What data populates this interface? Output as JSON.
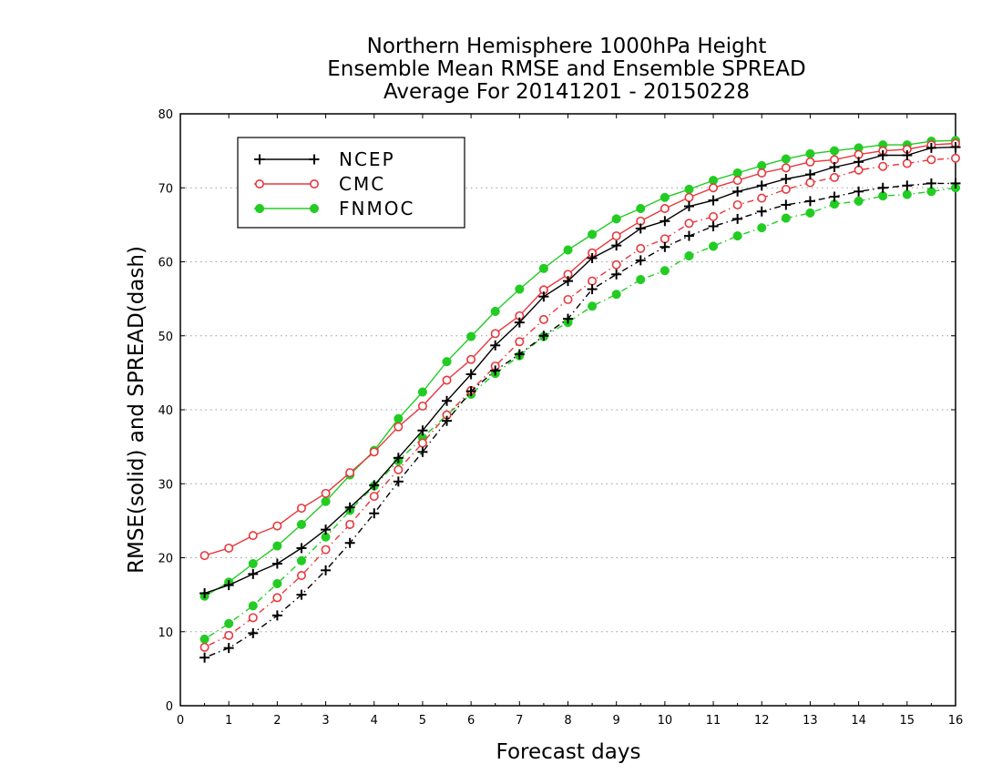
{
  "chart_data": {
    "type": "line",
    "title": [
      "Northern Hemisphere 1000hPa Height",
      "Ensemble Mean RMSE and Ensemble SPREAD",
      "Average For 20141201 - 20150228"
    ],
    "xlabel": "Forecast days",
    "ylabel": "RMSE(solid) and SPREAD(dash)",
    "xlim": [
      0,
      16
    ],
    "ylim": [
      0,
      80
    ],
    "xticks": [
      "0",
      "1",
      "2",
      "3",
      "4",
      "5",
      "6",
      "7",
      "8",
      "9",
      "10",
      "11",
      "12",
      "13",
      "14",
      "15",
      "16"
    ],
    "yticks": [
      "0",
      "10",
      "20",
      "30",
      "40",
      "50",
      "60",
      "70",
      "80"
    ],
    "grid": "horizontal dotted",
    "legend_position": "top-left",
    "x": [
      0.5,
      1,
      1.5,
      2,
      2.5,
      3,
      3.5,
      4,
      4.5,
      5,
      5.5,
      6,
      6.5,
      7,
      7.5,
      8,
      8.5,
      9,
      9.5,
      10,
      10.5,
      11,
      11.5,
      12,
      12.5,
      13,
      13.5,
      14,
      14.5,
      15,
      15.5,
      16
    ],
    "series": [
      {
        "name": "NCEP",
        "color": "#000000",
        "marker": "plus",
        "rmse": [
          15.2,
          16.3,
          17.8,
          19.2,
          21.3,
          23.8,
          26.8,
          29.8,
          33.5,
          37.2,
          41.2,
          44.8,
          48.7,
          51.8,
          55.3,
          57.4,
          60.5,
          62.2,
          64.5,
          65.5,
          67.5,
          68.3,
          69.5,
          70.3,
          71.2,
          71.8,
          72.8,
          73.5,
          74.4,
          74.4,
          75.4,
          75.5
        ],
        "spread": [
          6.5,
          7.8,
          9.8,
          12.2,
          15.0,
          18.3,
          22.0,
          26.0,
          30.3,
          34.3,
          38.5,
          42.5,
          45.3,
          47.5,
          50.0,
          52.3,
          56.3,
          58.3,
          60.2,
          62.0,
          63.5,
          64.8,
          65.8,
          66.8,
          67.7,
          68.2,
          68.8,
          69.5,
          70.0,
          70.3,
          70.6,
          70.6
        ]
      },
      {
        "name": "CMC",
        "color": "#e8383d",
        "marker": "circle-open",
        "rmse": [
          20.3,
          21.3,
          23.0,
          24.3,
          26.7,
          28.7,
          31.5,
          34.3,
          37.7,
          40.5,
          44.0,
          46.8,
          50.3,
          52.7,
          56.2,
          58.3,
          61.2,
          63.5,
          65.5,
          67.2,
          68.7,
          70.0,
          71.0,
          72.0,
          72.7,
          73.5,
          73.8,
          74.5,
          75.0,
          75.2,
          75.8,
          76.0
        ],
        "spread": [
          7.9,
          9.5,
          11.9,
          14.6,
          17.6,
          21.1,
          24.5,
          28.3,
          31.9,
          35.5,
          39.3,
          42.6,
          45.9,
          49.2,
          52.2,
          54.9,
          57.4,
          59.6,
          61.8,
          63.1,
          65.2,
          66.1,
          67.7,
          68.6,
          69.8,
          70.7,
          71.4,
          72.4,
          72.9,
          73.3,
          73.8,
          74.0
        ]
      },
      {
        "name": "FNMOC",
        "color": "#22cc22",
        "marker": "circle-filled",
        "rmse": [
          14.8,
          16.7,
          19.2,
          21.6,
          24.5,
          27.6,
          31.2,
          34.5,
          38.8,
          42.4,
          46.5,
          49.9,
          53.3,
          56.3,
          59.1,
          61.6,
          63.7,
          65.8,
          67.2,
          68.7,
          69.8,
          71.0,
          72.0,
          73.0,
          73.9,
          74.6,
          75.0,
          75.4,
          75.8,
          75.8,
          76.3,
          76.4
        ],
        "spread": [
          9.0,
          11.1,
          13.5,
          16.5,
          19.6,
          22.8,
          26.4,
          29.7,
          33.1,
          36.2,
          39.3,
          42.1,
          44.9,
          47.3,
          49.9,
          51.8,
          54.0,
          55.6,
          57.6,
          58.8,
          60.8,
          62.1,
          63.5,
          64.6,
          65.9,
          66.6,
          67.8,
          68.2,
          68.9,
          69.1,
          69.5,
          70.0
        ]
      }
    ]
  }
}
